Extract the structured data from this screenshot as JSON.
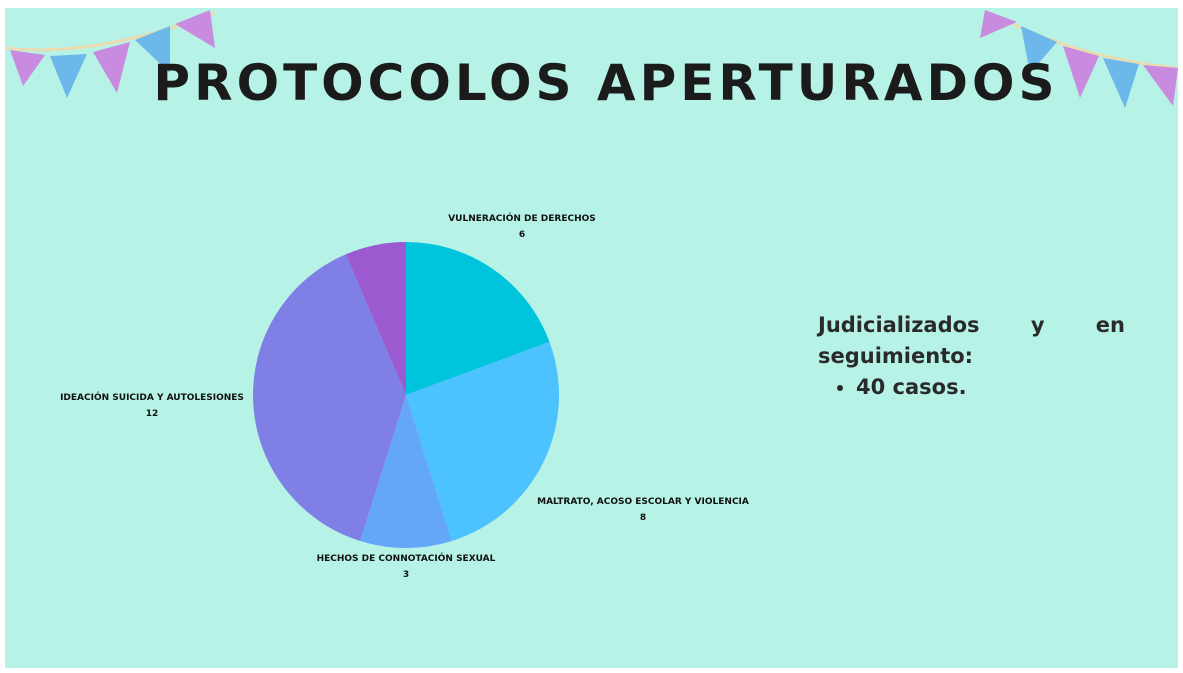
{
  "chart_data": {
    "type": "pie",
    "title": "PROTOCOLOS APERTURADOS",
    "categories": [
      "VULNERACIÓN DE DERECHOS",
      "MALTRATO, ACOSO ESCOLAR Y VIOLENCIA",
      "HECHOS DE CONNOTACIÓN SEXUAL",
      "IDEACIÓN SUICIDA Y AUTOLESIONES",
      null
    ],
    "values": [
      6,
      8,
      3,
      12,
      2
    ],
    "colors": [
      "#00c4dc",
      "#4cc3ff",
      "#64a7f9",
      "#7f7fe6",
      "#9b5acf"
    ]
  },
  "side_note": {
    "text": "Judicializados y en seguimiento:",
    "bullet": "40 casos."
  }
}
